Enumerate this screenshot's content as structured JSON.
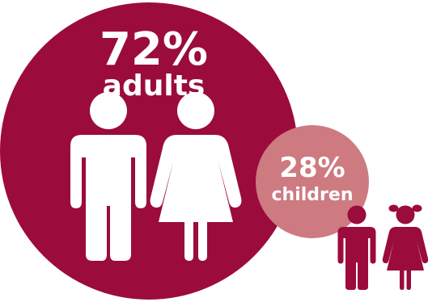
{
  "chart_data": {
    "type": "pie",
    "categories": [
      "adults",
      "children"
    ],
    "values": [
      72,
      28
    ],
    "value_suffix": "%",
    "title": "",
    "colors": {
      "adults": "#9b0b3c",
      "children": "#cd7b80",
      "figure_adults": "#ffffff",
      "figure_children": "#9b0b3c",
      "background": "#ffffff"
    }
  },
  "labels": {
    "adults_value": "72%",
    "adults_label": "adults",
    "children_value": "28%",
    "children_label": "children"
  },
  "icons": {
    "adults": [
      "man-icon",
      "woman-icon"
    ],
    "children": [
      "boy-icon",
      "girl-icon"
    ]
  }
}
